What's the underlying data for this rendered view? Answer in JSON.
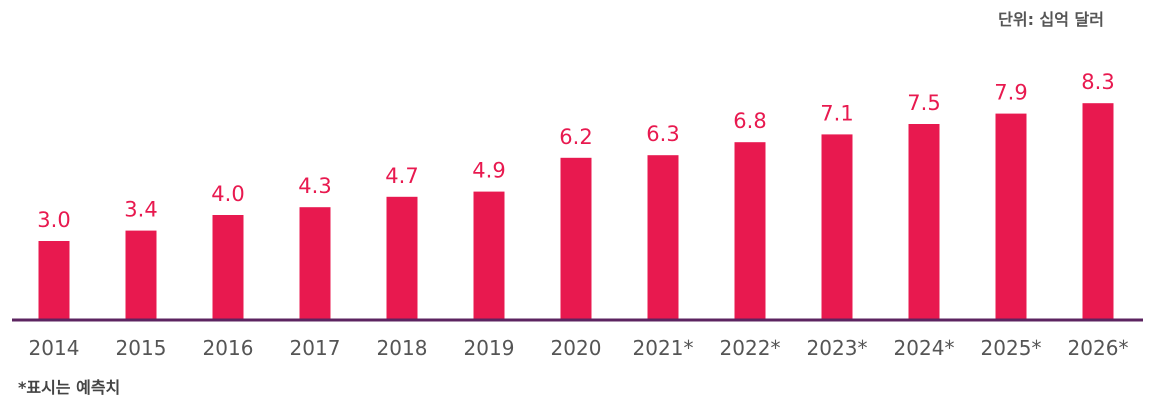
{
  "unit_label": "단위: 십억 달러",
  "footnote": "*표시는 예측치",
  "colors": {
    "bar": "#E8194F",
    "value_label": "#E8194F",
    "axis": "#5C2460",
    "tick": "#555555"
  },
  "chart_data": {
    "type": "bar",
    "categories": [
      "2014",
      "2015",
      "2016",
      "2017",
      "2018",
      "2019",
      "2020",
      "2021*",
      "2022*",
      "2023*",
      "2024*",
      "2025*",
      "2026*"
    ],
    "values": [
      3.0,
      3.4,
      4.0,
      4.3,
      4.7,
      4.9,
      6.2,
      6.3,
      6.8,
      7.1,
      7.5,
      7.9,
      8.3
    ],
    "value_labels": [
      "3.0",
      "3.4",
      "4.0",
      "4.3",
      "4.7",
      "4.9",
      "6.2",
      "6.3",
      "6.8",
      "7.1",
      "7.5",
      "7.9",
      "8.3"
    ],
    "title": "",
    "xlabel": "",
    "ylabel": "",
    "grid": false,
    "legend": "none"
  }
}
